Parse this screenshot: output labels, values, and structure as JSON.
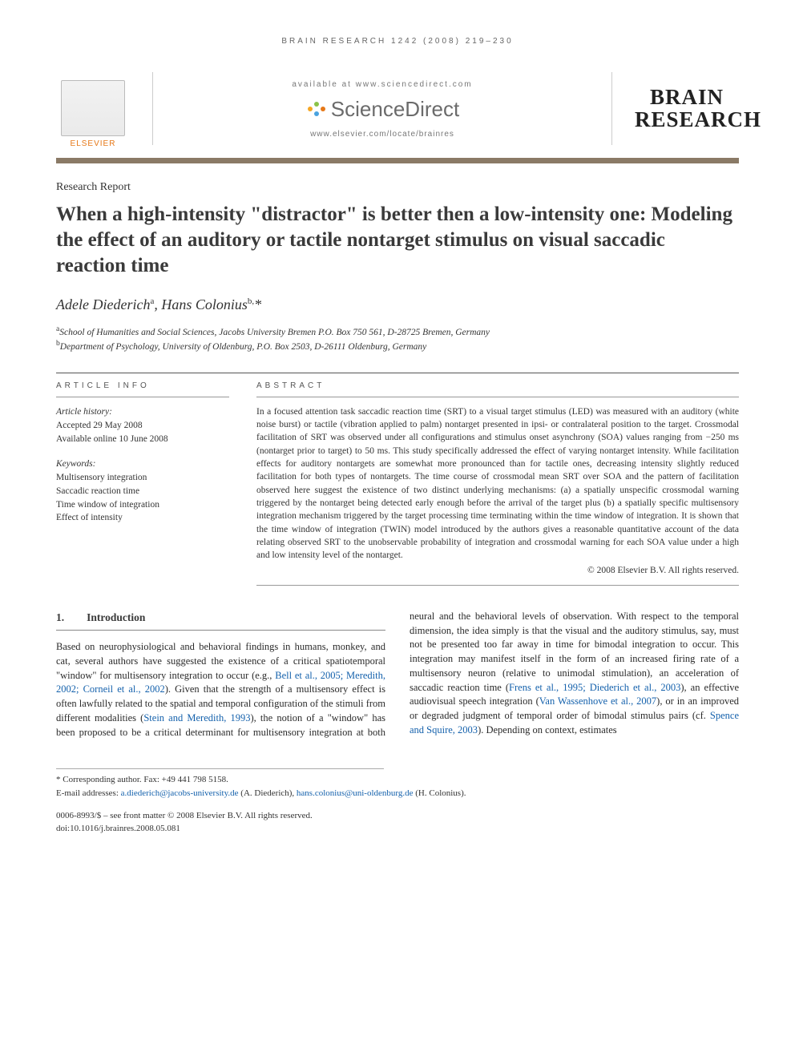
{
  "running_head": "BRAIN RESEARCH 1242 (2008) 219–230",
  "header": {
    "elsevier": "ELSEVIER",
    "available_at": "available at www.sciencedirect.com",
    "sd_name": "ScienceDirect",
    "journal_url": "www.elsevier.com/locate/brainres",
    "journal_line1": "BRAIN",
    "journal_line2": "RESEARCH"
  },
  "report_type": "Research Report",
  "title": "When a high-intensity \"distractor\" is better then a low-intensity one: Modeling the effect of an auditory or tactile nontarget stimulus on visual saccadic reaction time",
  "authors_html": "Adele Diederich<sup>a</sup>, Hans Colonius<sup>b,</sup>*",
  "affiliations": [
    "<sup>a</sup>School of Humanities and Social Sciences, Jacobs University Bremen P.O. Box 750 561, D-28725 Bremen, Germany",
    "<sup>b</sup>Department of Psychology, University of Oldenburg, P.O. Box 2503, D-26111 Oldenburg, Germany"
  ],
  "article_info": {
    "head": "ARTICLE INFO",
    "history_label": "Article history:",
    "accepted": "Accepted 29 May 2008",
    "online": "Available online 10 June 2008",
    "keywords_label": "Keywords:",
    "keywords": [
      "Multisensory integration",
      "Saccadic reaction time",
      "Time window of integration",
      "Effect of intensity"
    ]
  },
  "abstract": {
    "head": "ABSTRACT",
    "text": "In a focused attention task saccadic reaction time (SRT) to a visual target stimulus (LED) was measured with an auditory (white noise burst) or tactile (vibration applied to palm) nontarget presented in ipsi- or contralateral position to the target. Crossmodal facilitation of SRT was observed under all configurations and stimulus onset asynchrony (SOA) values ranging from −250 ms (nontarget prior to target) to 50 ms. This study specifically addressed the effect of varying nontarget intensity. While facilitation effects for auditory nontargets are somewhat more pronounced than for tactile ones, decreasing intensity slightly reduced facilitation for both types of nontargets. The time course of crossmodal mean SRT over SOA and the pattern of facilitation observed here suggest the existence of two distinct underlying mechanisms: (a) a spatially unspecific crossmodal warning triggered by the nontarget being detected early enough before the arrival of the target plus (b) a spatially specific multisensory integration mechanism triggered by the target processing time terminating within the time window of integration. It is shown that the time window of integration (TWIN) model introduced by the authors gives a reasonable quantitative account of the data relating observed SRT to the unobservable probability of integration and crossmodal warning for each SOA value under a high and low intensity level of the nontarget.",
    "copyright": "© 2008 Elsevier B.V. All rights reserved."
  },
  "intro": {
    "num": "1.",
    "title": "Introduction",
    "para": "Based on neurophysiological and behavioral findings in humans, monkey, and cat, several authors have suggested the existence of a critical spatiotemporal \"window\" for multisensory integration to occur (e.g., <span class=\"link\">Bell et al., 2005; Meredith, 2002; Corneil et al., 2002</span>). Given that the strength of a multisensory effect is often lawfully related to the spatial and temporal configuration of the stimuli from different modalities (<span class=\"link\">Stein and Meredith, 1993</span>), the notion of a \"window\" has been proposed to be a critical determinant for multisensory integration at both neural and the behavioral levels of observation. With respect to the temporal dimension, the idea simply is that the visual and the auditory stimulus, say, must not be presented too far away in time for bimodal integration to occur. This integration may manifest itself in the form of an increased firing rate of a multisensory neuron (relative to unimodal stimulation), an acceleration of saccadic reaction time (<span class=\"link\">Frens et al., 1995; Diederich et al., 2003</span>), an effective audiovisual speech integration (<span class=\"link\">Van Wassenhove et al., 2007</span>), or in an improved or degraded judgment of temporal order of bimodal stimulus pairs (cf. <span class=\"link\">Spence and Squire, 2003</span>). Depending on context, estimates"
  },
  "footnotes": {
    "corr": "* Corresponding author. Fax: +49 441 798 5158.",
    "emails_label": "E-mail addresses: ",
    "email1": "a.diederich@jacobs-university.de",
    "email1_who": " (A. Diederich), ",
    "email2": "hans.colonius@uni-oldenburg.de",
    "email2_who": " (H. Colonius).",
    "front_matter": "0006-8993/$ – see front matter © 2008 Elsevier B.V. All rights reserved.",
    "doi": "doi:10.1016/j.brainres.2008.05.081"
  }
}
